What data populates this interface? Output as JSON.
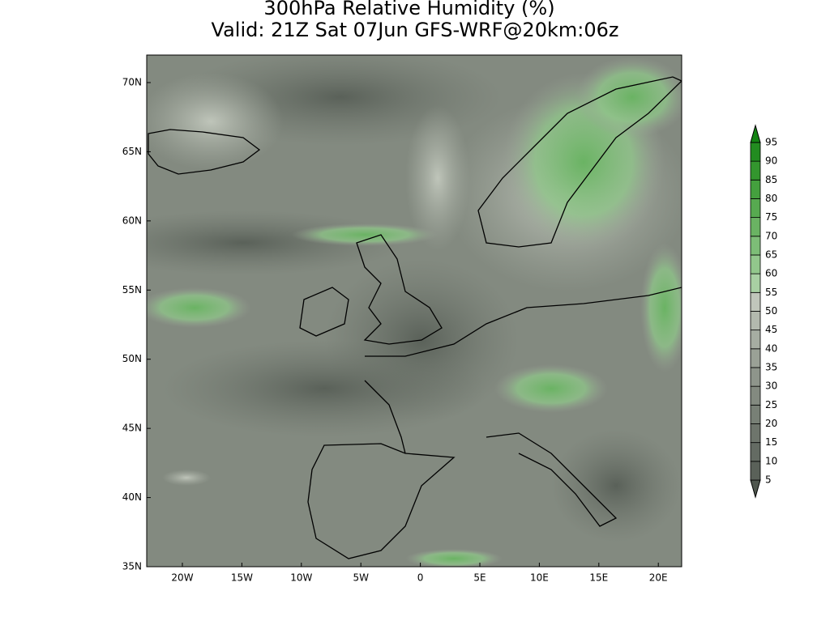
{
  "title": [
    "300hPa Relative Humidity (%)",
    "Valid: 21Z Sat 07Jun GFS-WRF@20km:06z"
  ],
  "latitude_labels": [
    "70N",
    "65N",
    "60N",
    "55N",
    "50N",
    "45N",
    "40N",
    "35N"
  ],
  "longitude_labels": [
    "20W",
    "15W",
    "10W",
    "5W",
    "0",
    "5E",
    "10E",
    "15E",
    "20E"
  ],
  "colorbar": {
    "levels": [
      5,
      10,
      15,
      20,
      25,
      30,
      35,
      40,
      45,
      50,
      55,
      60,
      65,
      70,
      75,
      80,
      85,
      90,
      95
    ],
    "colors": [
      "#4f564e",
      "#5a6159",
      "#646b63",
      "#6e756c",
      "#788076",
      "#838a80",
      "#8e958b",
      "#9aa196",
      "#a6ada2",
      "#b3b9ae",
      "#c0c6bb",
      "#a8d0a3",
      "#92c78c",
      "#7dbd77",
      "#6ab363",
      "#57aa50",
      "#44a03e",
      "#33962e",
      "#228c20",
      "#148414"
    ]
  }
}
